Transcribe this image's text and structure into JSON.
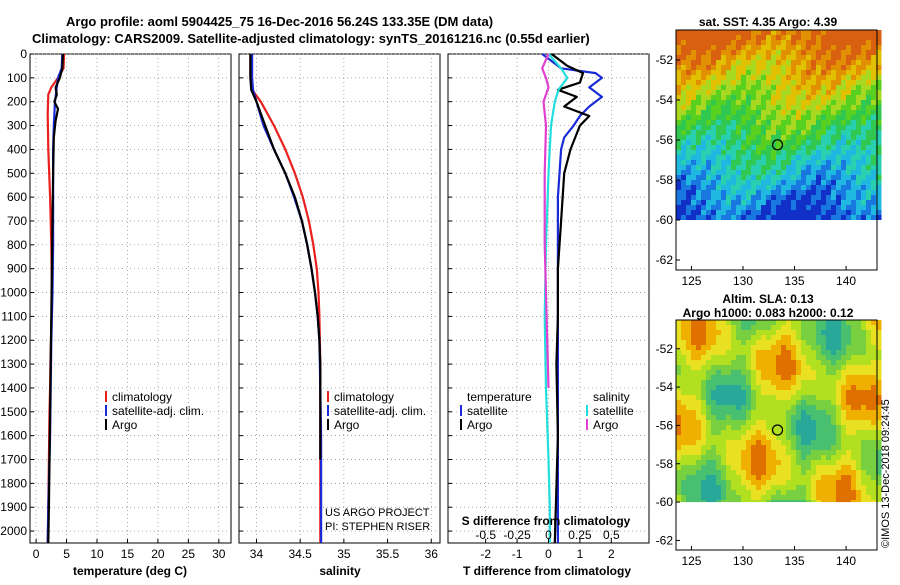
{
  "header": {
    "title_line1": "Argo profile: aoml 5904425_75 16-Dec-2016 56.24S 133.35E (DM data)",
    "title_line2": "Climatology: CARS2009. Satellite-adjusted climatology: synTS_20161216.nc (0.55d earlier)"
  },
  "colors": {
    "climatology": "#e8201e",
    "satellite": "#1a2ad6",
    "argo": "#000000",
    "satellite_salinity": "#22dede",
    "argo_salinity": "#e040d0",
    "grid": "#888888"
  },
  "depth_axis": {
    "range": [
      0,
      2050
    ],
    "ticks": [
      0,
      100,
      200,
      300,
      400,
      500,
      600,
      700,
      800,
      900,
      1000,
      1100,
      1200,
      1300,
      1400,
      1500,
      1600,
      1700,
      1800,
      1900,
      2000
    ]
  },
  "legends": {
    "climatology": "climatology",
    "satellite_adj": "satellite-adj. clim.",
    "argo": "Argo",
    "temperature": "temperature",
    "salinity": "salinity",
    "satellite": "satellite"
  },
  "credits": {
    "project": "US ARGO PROJECT",
    "pi": "PI: STEPHEN RISER",
    "imos": "©IMOS 13-Dec-2018 09:24:45"
  },
  "maps": {
    "sst_title": "sat. SST: 4.35 Argo: 4.39",
    "sla_title_line1": "Altim. SLA: 0.13",
    "sla_title_line2": "Argo h1000: 0.083 h2000: 0.12",
    "lon_ticks": [
      125,
      130,
      135,
      140
    ],
    "lat_ticks": [
      -52,
      -54,
      -56,
      -58,
      -60,
      -62
    ],
    "lon_range": [
      123.5,
      143
    ],
    "lat_range": [
      -62.5,
      -50.5
    ],
    "data_lat_limit": -60,
    "argo_position": [
      133.35,
      -56.24
    ]
  },
  "chart_data": [
    {
      "type": "line",
      "title": "",
      "xlabel": "temperature (deg C)",
      "ylabel": "",
      "xlim": [
        -1,
        32
      ],
      "ylim": [
        2050,
        0
      ],
      "x_ticks": [
        0,
        5,
        10,
        15,
        20,
        25,
        30
      ],
      "series": [
        {
          "name": "climatology",
          "x": [
            4.6,
            4.5,
            3.6,
            2.5,
            2.0,
            1.9,
            2.0,
            2.3,
            2.5,
            2.6,
            2.55,
            2.45,
            2.35,
            2.3,
            2.2,
            2.15,
            2.1,
            2.05,
            2.0,
            1.95,
            1.9
          ],
          "y": [
            0,
            60,
            100,
            140,
            170,
            250,
            400,
            600,
            800,
            1000,
            1100,
            1200,
            1300,
            1400,
            1500,
            1600,
            1700,
            1800,
            1900,
            2000,
            2050
          ]
        },
        {
          "name": "satellite-adj. clim.",
          "x": [
            4.3,
            4.2,
            3.6,
            3.1,
            2.9,
            2.8,
            2.8,
            2.8,
            2.7,
            2.6,
            2.5,
            2.4,
            2.3,
            2.2,
            2.1,
            2.0,
            1.9
          ],
          "y": [
            0,
            60,
            100,
            200,
            300,
            400,
            600,
            800,
            1000,
            1100,
            1200,
            1400,
            1600,
            1700,
            1800,
            1900,
            2050
          ]
        },
        {
          "name": "Argo",
          "x": [
            4.4,
            4.3,
            3.9,
            3.2,
            3.4,
            3.0,
            3.6,
            3.2,
            2.9,
            2.8,
            2.7,
            2.6,
            2.5,
            2.4,
            2.3,
            2.2,
            2.1,
            2.0
          ],
          "y": [
            0,
            60,
            100,
            140,
            170,
            200,
            230,
            280,
            350,
            500,
            700,
            900,
            1100,
            1300,
            1500,
            1700,
            1900,
            2050
          ]
        }
      ]
    },
    {
      "type": "line",
      "title": "",
      "xlabel": "salinity",
      "ylabel": "",
      "xlim": [
        33.8,
        36.1
      ],
      "ylim": [
        2050,
        0
      ],
      "x_ticks": [
        34,
        34.5,
        35,
        35.5,
        36
      ],
      "series": [
        {
          "name": "climatology",
          "x": [
            33.93,
            33.93,
            33.95,
            34.05,
            34.2,
            34.33,
            34.44,
            34.53,
            34.6,
            34.65,
            34.69,
            34.71,
            34.72,
            34.73,
            34.73,
            34.73,
            34.73,
            34.73
          ],
          "y": [
            0,
            100,
            150,
            200,
            300,
            400,
            500,
            600,
            700,
            800,
            900,
            1000,
            1100,
            1300,
            1500,
            1700,
            1900,
            2050
          ]
        },
        {
          "name": "satellite-adj. clim.",
          "x": [
            33.95,
            33.95,
            33.96,
            34.0,
            34.08,
            34.2,
            34.33,
            34.43,
            34.52,
            34.58,
            34.63,
            34.67,
            34.7,
            34.72,
            34.73,
            34.74,
            34.74,
            34.74
          ],
          "y": [
            0,
            100,
            150,
            200,
            300,
            400,
            500,
            600,
            700,
            800,
            900,
            1000,
            1100,
            1200,
            1400,
            1600,
            1800,
            2050
          ]
        },
        {
          "name": "Argo",
          "x": [
            33.93,
            33.93,
            33.94,
            34.0,
            34.1,
            34.2,
            34.33,
            34.44,
            34.52,
            34.58,
            34.63,
            34.67,
            34.7,
            34.72,
            34.73,
            34.73,
            34.73
          ],
          "y": [
            0,
            100,
            150,
            200,
            300,
            400,
            500,
            600,
            700,
            800,
            900,
            1000,
            1100,
            1200,
            1300,
            1500,
            1700
          ]
        }
      ]
    },
    {
      "type": "line",
      "title": "",
      "xlabel": "T difference from climatology",
      "ylabel": "",
      "xlim": [
        -3.2,
        3.2
      ],
      "ylim": [
        2050,
        0
      ],
      "x_ticks": [
        -2,
        -1,
        0,
        1,
        2
      ],
      "x_tick_labels": [
        "-2",
        "-1",
        "0",
        "1",
        "2"
      ],
      "secondary_xlabel": "S difference from climatology",
      "secondary_xlim": [
        -0.8,
        0.8
      ],
      "secondary_x_ticks": [
        -0.5,
        -0.25,
        0,
        0.25,
        0.5
      ],
      "secondary_x_tick_labels": [
        "-0.5",
        "-0.25",
        "0",
        "0.25",
        "0.5"
      ],
      "series": [
        {
          "name": "temperature satellite",
          "axis": "T",
          "x": [
            -0.2,
            0.4,
            1.5,
            1.7,
            1.3,
            1.7,
            1.3,
            1.0,
            0.8,
            0.5,
            0.4,
            0.35,
            0.3,
            0.3,
            0.3,
            0.3,
            0.3
          ],
          "y": [
            0,
            60,
            80,
            100,
            140,
            180,
            220,
            260,
            300,
            350,
            400,
            500,
            600,
            800,
            1000,
            1500,
            2050
          ]
        },
        {
          "name": "temperature Argo",
          "axis": "T",
          "x": [
            0.1,
            0.6,
            1.1,
            1.0,
            0.3,
            0.9,
            0.5,
            1.3,
            1.0,
            0.7,
            0.5,
            0.4,
            0.3,
            0.3,
            0.25,
            0.3,
            0.2
          ],
          "y": [
            0,
            50,
            80,
            120,
            150,
            180,
            220,
            260,
            300,
            400,
            500,
            700,
            900,
            1100,
            1300,
            1600,
            2050
          ]
        },
        {
          "name": "salinity satellite",
          "axis": "S",
          "x": [
            0.0,
            0.1,
            0.15,
            0.08,
            0.05,
            0.02,
            0.0,
            -0.02,
            -0.03,
            -0.02,
            0.0,
            0.01,
            0.01
          ],
          "y": [
            0,
            60,
            100,
            150,
            200,
            300,
            500,
            800,
            1100,
            1400,
            1700,
            1900,
            2050
          ]
        },
        {
          "name": "salinity Argo",
          "axis": "S",
          "x": [
            0.0,
            -0.05,
            -0.02,
            0.0,
            -0.04,
            -0.02,
            -0.03,
            -0.03,
            -0.02,
            -0.01,
            0.0
          ],
          "y": [
            0,
            60,
            100,
            140,
            200,
            300,
            500,
            800,
            1000,
            1200,
            1400
          ]
        }
      ]
    }
  ]
}
